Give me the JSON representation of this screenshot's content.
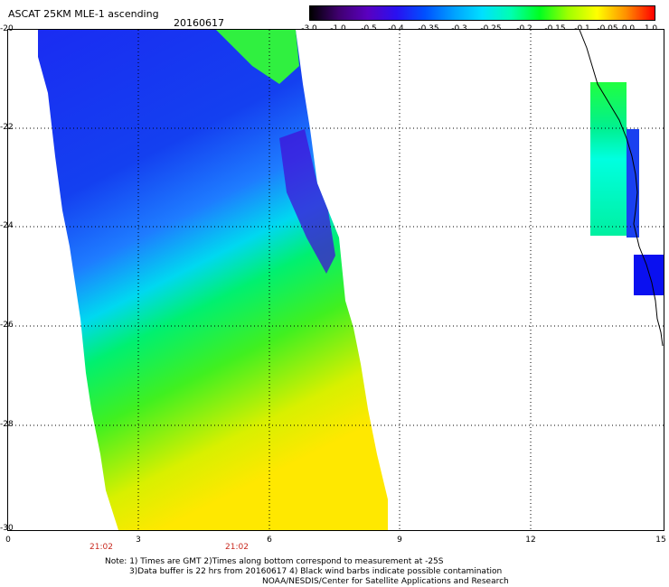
{
  "header": {
    "title": "ASCAT 25KM MLE-1 ascending",
    "date": "20160617"
  },
  "colorbar": {
    "labels": [
      "-3.0",
      "-1.0",
      "-0.5",
      "-0.4",
      "-0.35",
      "-0.3",
      "-0.25",
      "-0.2",
      "-0.15",
      "-0.1",
      "-0.05",
      "0.0",
      "1.0"
    ],
    "colors": [
      "#000000",
      "#400070",
      "#5a00c0",
      "#2a10f0",
      "#0050ff",
      "#00a0ff",
      "#00e0ff",
      "#00ffb0",
      "#00ff20",
      "#a0ff00",
      "#ffff00",
      "#ff9000",
      "#ff0000"
    ]
  },
  "axes": {
    "y_labels": [
      "-20",
      "-22",
      "-24",
      "-26",
      "-28",
      "-30"
    ],
    "x_labels": [
      "0",
      "3",
      "6",
      "9",
      "12",
      "15"
    ],
    "time_labels": [
      "21:02",
      "21:02"
    ]
  },
  "notes": {
    "line1": "Note: 1) Times are GMT 2)Times along bottom correspond to measurement at -25S",
    "line2": "3)Data buffer is 22 hrs from 20160617 4) Black wind barbs indicate possible contamination",
    "line3": "NOAA/NESDIS/Center for Satellite Applications and Research"
  }
}
